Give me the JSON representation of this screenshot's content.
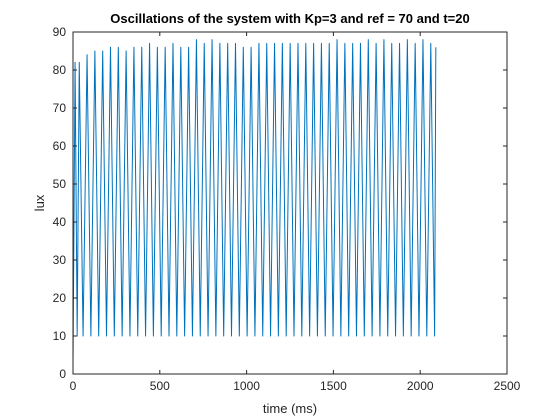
{
  "chart_data": {
    "type": "line",
    "title": "Oscillations of the system with Kp=3 and ref = 70 and t=20",
    "xlabel": "time (ms)",
    "ylabel": "lux",
    "xlim": [
      0,
      2500
    ],
    "ylim": [
      0,
      90
    ],
    "xticks": [
      0,
      500,
      1000,
      1500,
      2000,
      2500
    ],
    "yticks": [
      0,
      10,
      20,
      30,
      40,
      50,
      60,
      70,
      80,
      90
    ],
    "xtick_labels": [
      "0",
      "500",
      "1000",
      "1500",
      "2000",
      "2500"
    ],
    "ytick_labels": [
      "0",
      "10",
      "20",
      "30",
      "40",
      "50",
      "60",
      "70",
      "80",
      "90"
    ],
    "grid": false,
    "legend": "none",
    "series": [
      {
        "color": "#0072BD",
        "x": [
          0,
          12,
          24,
          36,
          58,
          81,
          103,
          126,
          148,
          171,
          193,
          216,
          238,
          261,
          283,
          306,
          328,
          351,
          373,
          396,
          418,
          441,
          463,
          486,
          508,
          531,
          553,
          576,
          598,
          621,
          643,
          666,
          688,
          711,
          733,
          756,
          778,
          801,
          823,
          846,
          868,
          891,
          913,
          936,
          958,
          981,
          1003,
          1026,
          1048,
          1071,
          1093,
          1116,
          1138,
          1161,
          1183,
          1206,
          1228,
          1251,
          1273,
          1296,
          1318,
          1341,
          1363,
          1386,
          1408,
          1431,
          1453,
          1476,
          1498,
          1521,
          1543,
          1566,
          1588,
          1611,
          1633,
          1656,
          1678,
          1701,
          1723,
          1746,
          1768,
          1791,
          1813,
          1836,
          1858,
          1881,
          1903,
          1926,
          1948,
          1971,
          1993,
          2016,
          2038,
          2061,
          2083,
          2090
        ],
        "y": [
          2,
          82,
          10,
          82,
          10,
          84,
          10,
          85,
          10,
          85,
          10,
          86,
          10,
          86,
          10,
          85,
          10,
          86,
          10,
          86,
          10,
          87,
          10,
          86,
          10,
          86,
          10,
          87,
          10,
          86,
          10,
          86,
          10,
          88,
          10,
          87,
          10,
          88,
          10,
          87,
          10,
          87,
          10,
          87,
          10,
          86,
          10,
          86,
          10,
          87,
          10,
          87,
          10,
          87,
          10,
          87,
          10,
          87,
          10,
          87,
          10,
          87,
          10,
          87,
          10,
          87,
          10,
          87,
          10,
          88,
          10,
          87,
          10,
          87,
          10,
          87,
          10,
          88,
          10,
          87,
          10,
          88,
          10,
          87,
          10,
          87,
          10,
          88,
          10,
          87,
          10,
          88,
          10,
          87,
          10,
          86
        ]
      }
    ]
  }
}
